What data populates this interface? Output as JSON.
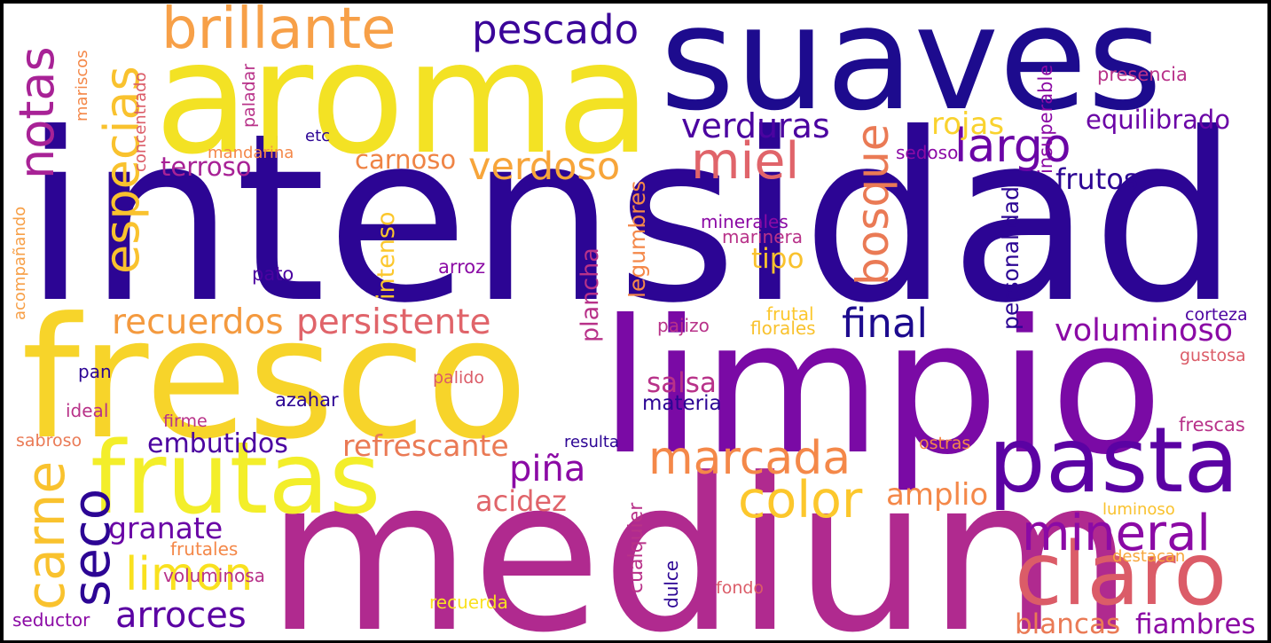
{
  "words": {
    "intensidad": "intensidad",
    "medium": "medium",
    "limpio": "limpio",
    "fresco": "fresco",
    "aroma": "aroma",
    "suaves": "suaves",
    "frutas": "frutas",
    "pasta": "pasta",
    "claro": "claro",
    "brillante": "brillante",
    "pescado": "pescado",
    "notas": "notas",
    "especias": "especias",
    "verduras": "verduras",
    "largo": "largo",
    "miel": "miel",
    "bosque": "bosque",
    "verdoso": "verdoso",
    "rojas": "rojas",
    "equilibrado": "equilibrado",
    "terroso": "terroso",
    "carnoso": "carnoso",
    "frutos": "frutos",
    "recuerdos": "recuerdos",
    "persistente": "persistente",
    "final": "final",
    "voluminoso": "voluminoso",
    "marcada": "marcada",
    "color": "color",
    "mineral": "mineral",
    "carne": "carne",
    "seco": "seco",
    "limon": "limon",
    "arroces": "arroces",
    "granate": "granate",
    "embutidos": "embutidos",
    "refrescante": "refrescante",
    "pina": "piña",
    "acidez": "acidez",
    "amplio": "amplio",
    "blancas": "blancas",
    "fiambres": "fiambres",
    "salsa": "salsa",
    "materia": "materia",
    "plancha": "plancha",
    "legumbres": "legumbres",
    "intenso": "intenso",
    "tipo": "tipo",
    "personalidad": "personalidad",
    "insuperable": "insuperable",
    "presencia": "presencia",
    "sedoso": "sedoso",
    "minerales": "minerales",
    "marinera": "marinera",
    "arroz": "arroz",
    "pato": "pato",
    "pajizo": "pajizo",
    "frutal": "frutal",
    "florales": "florales",
    "corteza": "corteza",
    "gustosa": "gustosa",
    "frescas": "frescas",
    "ostras": "ostras",
    "luminoso": "luminoso",
    "destacan": "destacan",
    "resulta": "resulta",
    "cualquier": "cualquier",
    "dulce": "dulce",
    "fondo": "fondo",
    "recuerda": "recuerda",
    "voluminosa": "voluminosa",
    "frutales": "frutales",
    "seductor": "seductor",
    "sabroso": "sabroso",
    "firme": "firme",
    "azahar": "azahar",
    "ideal": "ideal",
    "pan": "pan",
    "palido": "palido",
    "mandarina": "mandarina",
    "etc": "etc",
    "paladar": "paladar",
    "concentrado": "concentrado",
    "mariscos": "mariscos",
    "acompanando": "acompañando"
  },
  "colors": {
    "palette": [
      "#0d0887",
      "#2c0594",
      "#5b02a3",
      "#8b0aa5",
      "#b83289",
      "#db5c68",
      "#f48849",
      "#febc2a",
      "#f0f921"
    ]
  }
}
